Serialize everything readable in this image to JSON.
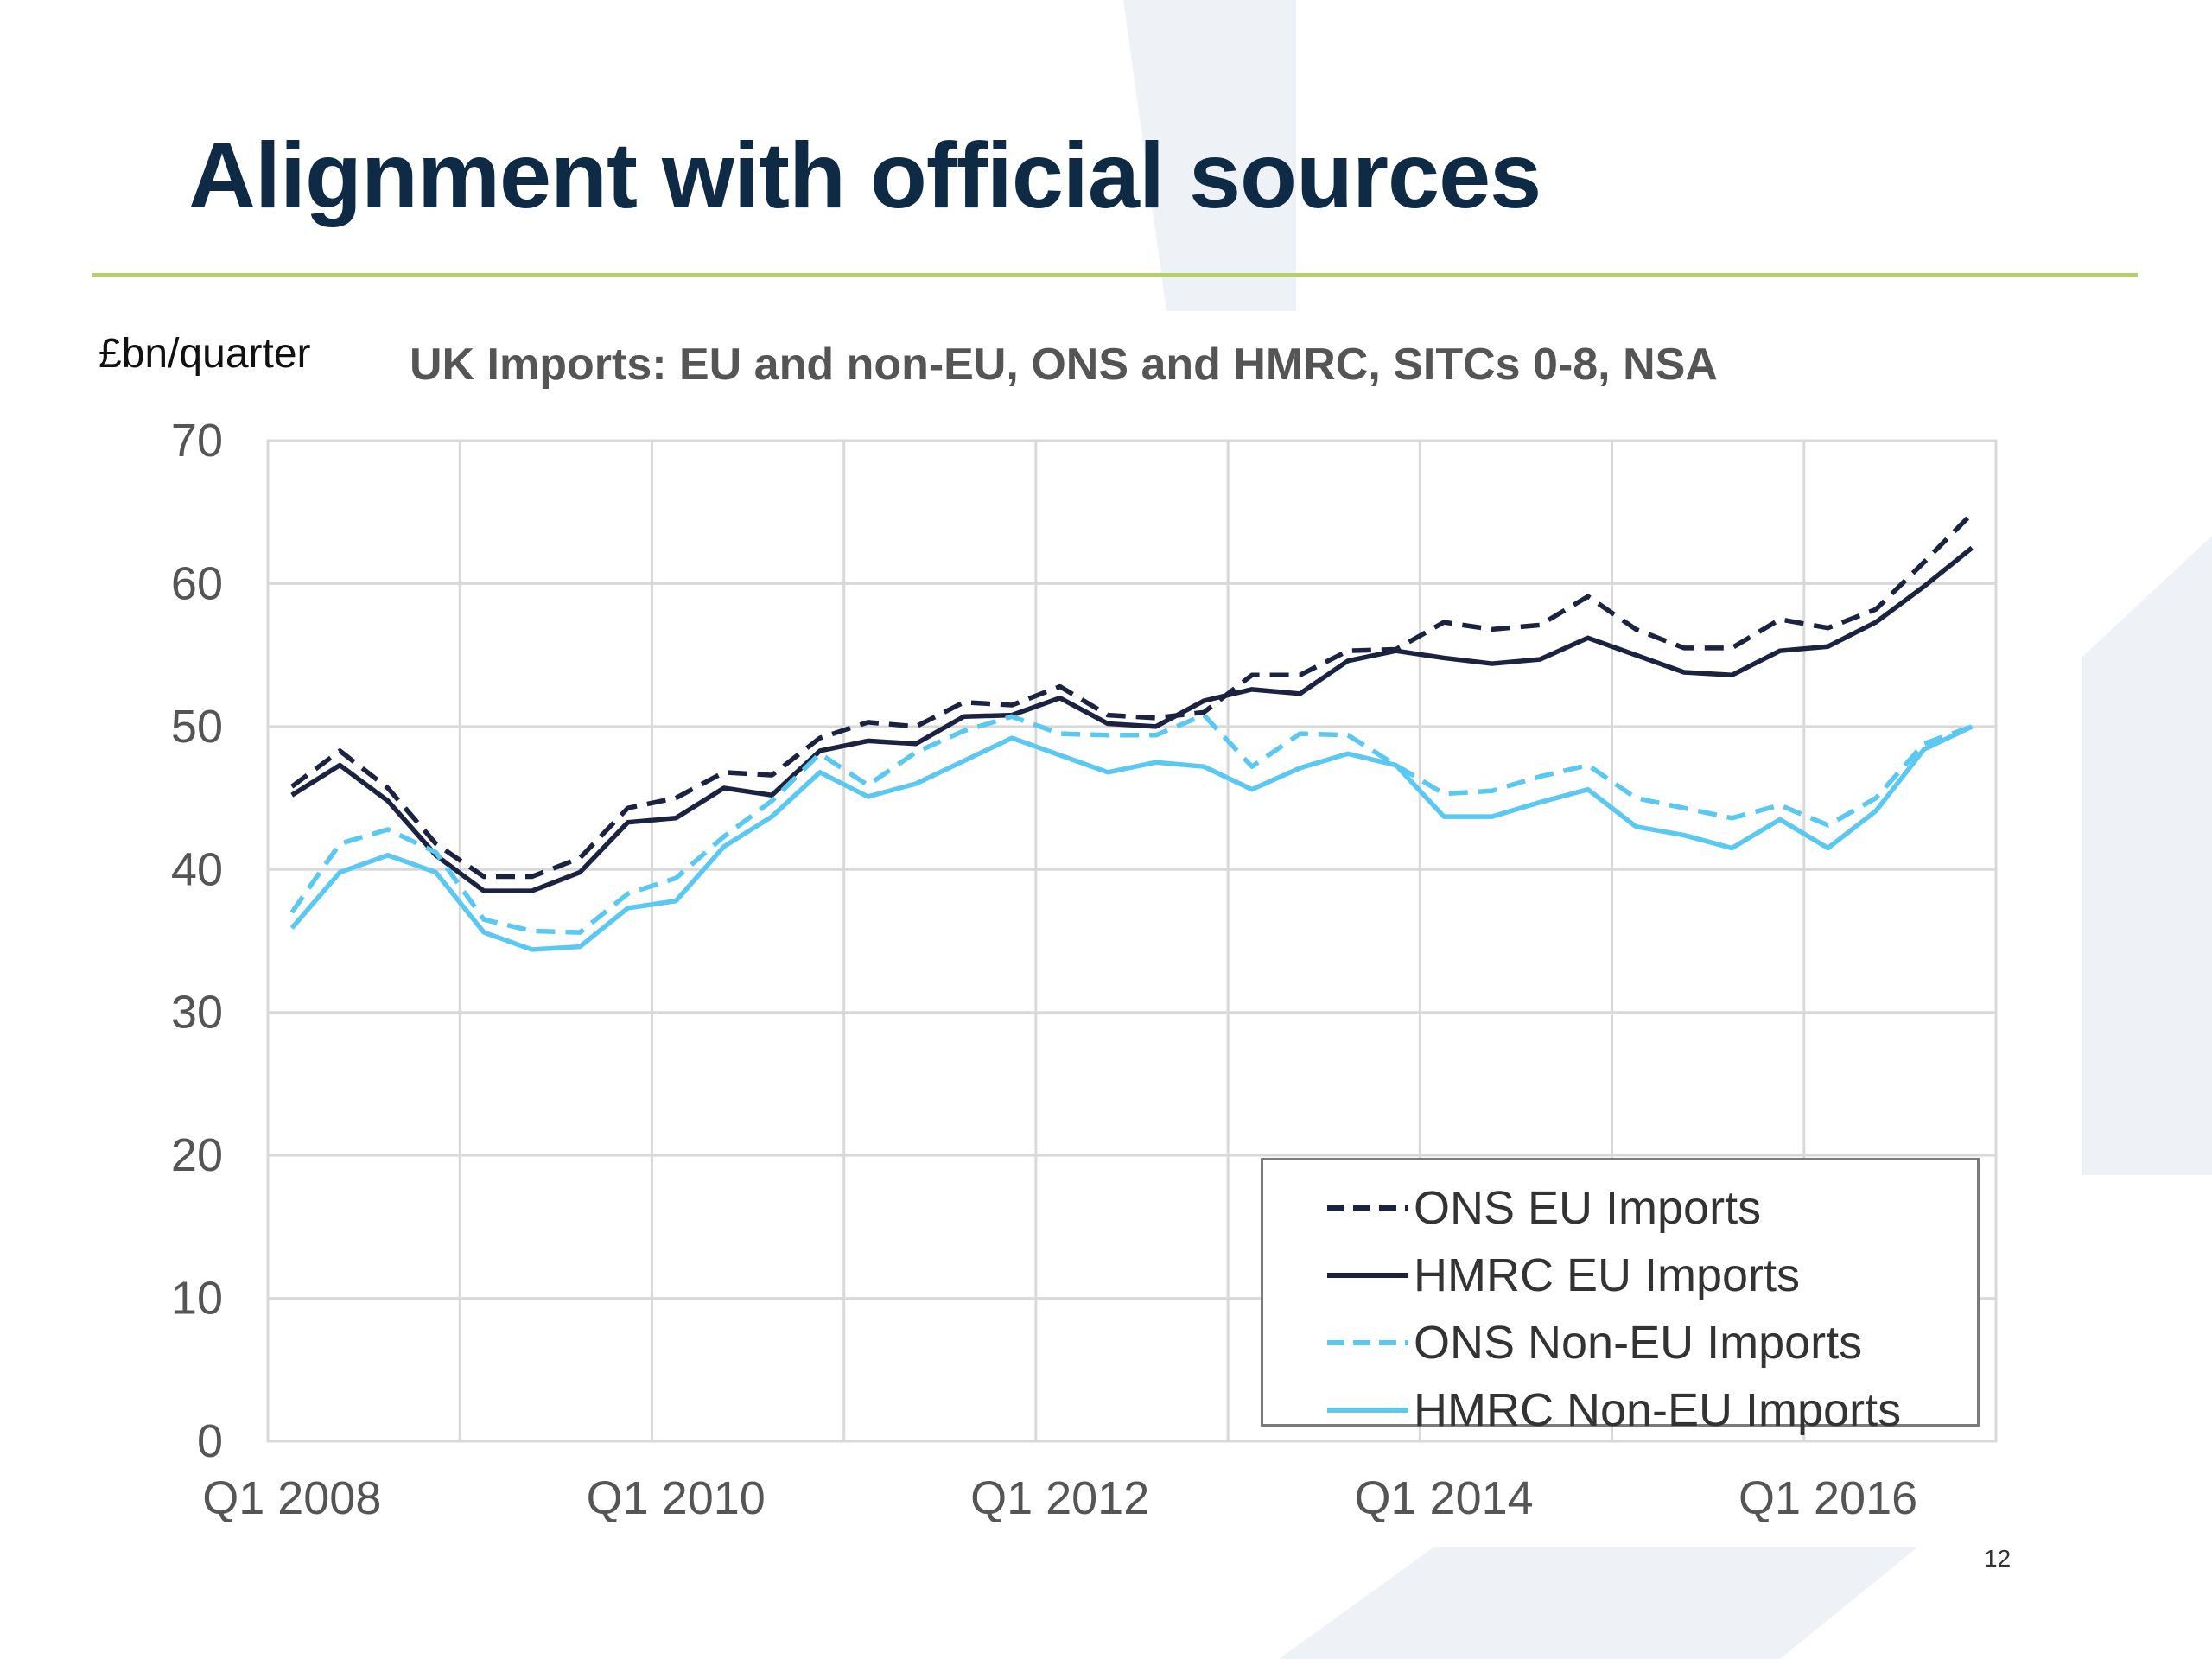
{
  "slide": {
    "title": "Alignment with official sources",
    "unit_label": "£bn/quarter",
    "chart_title": "UK Imports: EU and non-EU, ONS and HMRC, SITCs 0-8, NSA"
  },
  "colors": {
    "title": "#0f2a44",
    "rule": "#b6cf6a",
    "eu_series": "#1c2340",
    "non_eu_series": "#5ac8f0",
    "watermark": "#e9eef3"
  },
  "chart_data": {
    "type": "line",
    "title": "UK Imports: EU and non-EU, ONS and HMRC, SITCs 0-8, NSA",
    "xlabel": "",
    "ylabel": "£bn/quarter",
    "ylim": [
      0,
      70
    ],
    "yticks": [
      0,
      10,
      20,
      30,
      40,
      50,
      60,
      70
    ],
    "xtick_labels": [
      "Q1 2008",
      "Q1 2010",
      "Q1 2012",
      "Q1 2014",
      "Q1 2016"
    ],
    "xtick_positions": [
      0,
      8,
      16,
      24,
      32
    ],
    "xlim": [
      -0.5,
      35.5
    ],
    "grid": true,
    "legend_position": "bottom-right",
    "x": [
      "Q1 2008",
      "Q2 2008",
      "Q3 2008",
      "Q4 2008",
      "Q1 2009",
      "Q2 2009",
      "Q3 2009",
      "Q4 2009",
      "Q1 2010",
      "Q2 2010",
      "Q3 2010",
      "Q4 2010",
      "Q1 2011",
      "Q2 2011",
      "Q3 2011",
      "Q4 2011",
      "Q1 2012",
      "Q2 2012",
      "Q3 2012",
      "Q4 2012",
      "Q1 2013",
      "Q2 2013",
      "Q3 2013",
      "Q4 2013",
      "Q1 2014",
      "Q2 2014",
      "Q3 2014",
      "Q4 2014",
      "Q1 2015",
      "Q2 2015",
      "Q3 2015",
      "Q4 2015",
      "Q1 2016",
      "Q2 2016",
      "Q3 2016",
      "Q4 2016"
    ],
    "series": [
      {
        "name": "ONS EU Imports",
        "style": "dashed",
        "color": "#1c2340",
        "values": [
          45.8,
          48.3,
          45.7,
          41.8,
          39.5,
          39.5,
          40.8,
          44.3,
          45.0,
          46.8,
          46.6,
          49.2,
          50.3,
          50.0,
          51.7,
          51.5,
          52.8,
          50.8,
          50.6,
          51.0,
          53.6,
          53.6,
          55.3,
          55.4,
          57.3,
          56.8,
          57.1,
          59.1,
          56.8,
          55.5,
          55.5,
          57.5,
          56.9,
          58.2,
          61.5,
          64.9
        ]
      },
      {
        "name": "HMRC EU Imports",
        "style": "solid",
        "color": "#1c2340",
        "values": [
          45.2,
          47.3,
          44.8,
          41.0,
          38.5,
          38.5,
          39.8,
          43.3,
          43.6,
          45.7,
          45.2,
          48.3,
          49.0,
          48.8,
          50.7,
          50.8,
          52.0,
          50.2,
          50.0,
          51.8,
          52.6,
          52.3,
          54.6,
          55.3,
          54.8,
          54.4,
          54.7,
          56.2,
          55.0,
          53.8,
          53.6,
          55.3,
          55.6,
          57.3,
          59.8,
          62.5
        ]
      },
      {
        "name": "ONS Non-EU Imports",
        "style": "dashed",
        "color": "#5ac8f0",
        "values": [
          37.0,
          41.8,
          42.8,
          41.2,
          36.5,
          35.7,
          35.6,
          38.3,
          39.4,
          42.3,
          44.8,
          48.1,
          45.9,
          48.2,
          49.7,
          50.7,
          49.5,
          49.4,
          49.4,
          50.8,
          47.2,
          49.5,
          49.4,
          47.3,
          45.3,
          45.5,
          46.5,
          47.3,
          45.0,
          44.3,
          43.6,
          44.5,
          43.1,
          45.0,
          48.8,
          50.0
        ]
      },
      {
        "name": "HMRC Non-EU Imports",
        "style": "solid",
        "color": "#5ac8f0",
        "values": [
          35.9,
          39.8,
          41.0,
          39.8,
          35.6,
          34.4,
          34.6,
          37.3,
          37.8,
          41.6,
          43.7,
          46.8,
          45.1,
          46.0,
          47.6,
          49.2,
          48.0,
          46.8,
          47.5,
          47.2,
          45.6,
          47.1,
          48.1,
          47.3,
          43.7,
          43.7,
          44.7,
          45.6,
          43.0,
          42.4,
          41.5,
          43.5,
          41.5,
          44.1,
          48.4,
          50.0
        ]
      }
    ]
  },
  "page_number": "12"
}
